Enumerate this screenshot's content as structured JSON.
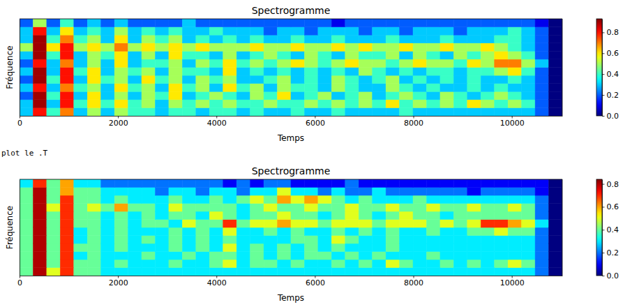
{
  "chart_data": [
    {
      "type": "heatmap",
      "title": "Spectrogramme",
      "x_label": "Temps",
      "y_label": "Fréquence",
      "xlim": [
        0,
        11025
      ],
      "xticks": [
        0,
        2000,
        4000,
        6000,
        8000,
        10000
      ],
      "ylim": [
        0,
        12
      ],
      "tick_labels": "x",
      "cells": [
        [
          0.3,
          0.8,
          0.4,
          0.7,
          0.3,
          0.5,
          0.3,
          0.5,
          0.4,
          0.4,
          0.3,
          0.4,
          0.4,
          0.3,
          0.4,
          0.4,
          0.3,
          0.4,
          0.3,
          0.3,
          0.4,
          0.3,
          0.3,
          0.4,
          0.3,
          0.3,
          0.3,
          0.3,
          0.4,
          0.3,
          0.3,
          0.3,
          0.3,
          0.3,
          0.3,
          0.3,
          0.3,
          0.3,
          0.2,
          0.0
        ],
        [
          0.3,
          0.9,
          0.3,
          0.8,
          0.4,
          0.6,
          0.4,
          0.6,
          0.4,
          0.5,
          0.3,
          0.5,
          0.4,
          0.5,
          0.4,
          0.5,
          0.4,
          0.4,
          0.5,
          0.4,
          0.4,
          0.5,
          0.4,
          0.5,
          0.4,
          0.5,
          0.4,
          0.6,
          0.4,
          0.5,
          0.4,
          0.5,
          0.4,
          0.6,
          0.5,
          0.4,
          0.5,
          0.4,
          0.2,
          0.0
        ],
        [
          0.2,
          0.9,
          0.4,
          0.8,
          0.3,
          0.6,
          0.3,
          0.5,
          0.3,
          0.5,
          0.4,
          0.6,
          0.3,
          0.4,
          0.5,
          0.4,
          0.3,
          0.5,
          0.4,
          0.6,
          0.3,
          0.4,
          0.5,
          0.3,
          0.4,
          0.5,
          0.3,
          0.4,
          0.5,
          0.4,
          0.3,
          0.5,
          0.4,
          0.3,
          0.4,
          0.5,
          0.4,
          0.3,
          0.2,
          0.0
        ],
        [
          0.3,
          0.8,
          0.3,
          0.7,
          0.4,
          0.5,
          0.3,
          0.6,
          0.4,
          0.5,
          0.3,
          0.6,
          0.4,
          0.5,
          0.3,
          0.6,
          0.4,
          0.5,
          0.3,
          0.5,
          0.4,
          0.4,
          0.3,
          0.5,
          0.4,
          0.3,
          0.3,
          0.5,
          0.4,
          0.3,
          0.4,
          0.3,
          0.3,
          0.4,
          0.3,
          0.4,
          0.3,
          0.3,
          0.2,
          0.0
        ],
        [
          0.2,
          0.9,
          0.4,
          0.8,
          0.3,
          0.6,
          0.4,
          0.5,
          0.3,
          0.6,
          0.4,
          0.5,
          0.3,
          0.5,
          0.4,
          0.5,
          0.3,
          0.3,
          0.4,
          0.5,
          0.3,
          0.4,
          0.3,
          0.5,
          0.4,
          0.3,
          0.4,
          0.5,
          0.3,
          0.4,
          0.3,
          0.4,
          0.3,
          0.4,
          0.3,
          0.3,
          0.4,
          0.3,
          0.2,
          0.0
        ],
        [
          0.3,
          0.9,
          0.3,
          0.8,
          0.4,
          0.6,
          0.3,
          0.5,
          0.4,
          0.5,
          0.3,
          0.5,
          0.4,
          0.4,
          0.3,
          0.6,
          0.3,
          0.4,
          0.3,
          0.4,
          0.3,
          0.4,
          0.3,
          0.4,
          0.3,
          0.5,
          0.4,
          0.3,
          0.4,
          0.3,
          0.4,
          0.4,
          0.3,
          0.4,
          0.4,
          0.5,
          0.6,
          0.4,
          0.2,
          0.0
        ],
        [
          0.2,
          0.8,
          0.3,
          0.7,
          0.3,
          0.5,
          0.3,
          0.6,
          0.3,
          0.4,
          0.4,
          0.5,
          0.3,
          0.5,
          0.4,
          0.6,
          0.4,
          0.5,
          0.4,
          0.5,
          0.6,
          0.5,
          0.4,
          0.5,
          0.6,
          0.5,
          0.5,
          0.4,
          0.5,
          0.6,
          0.5,
          0.5,
          0.4,
          0.6,
          0.5,
          0.7,
          0.7,
          0.5,
          0.3,
          0.0
        ],
        [
          0.3,
          0.9,
          0.4,
          0.8,
          0.3,
          0.5,
          0.4,
          0.6,
          0.3,
          0.5,
          0.3,
          0.6,
          0.4,
          0.4,
          0.3,
          0.5,
          0.3,
          0.4,
          0.5,
          0.4,
          0.3,
          0.5,
          0.4,
          0.3,
          0.5,
          0.4,
          0.4,
          0.5,
          0.3,
          0.5,
          0.4,
          0.3,
          0.5,
          0.4,
          0.5,
          0.6,
          0.5,
          0.4,
          0.2,
          0.0
        ],
        [
          0.5,
          0.9,
          0.6,
          0.8,
          0.5,
          0.6,
          0.5,
          0.7,
          0.5,
          0.6,
          0.5,
          0.6,
          0.5,
          0.6,
          0.5,
          0.5,
          0.5,
          0.6,
          0.5,
          0.5,
          0.6,
          0.5,
          0.5,
          0.6,
          0.5,
          0.6,
          0.5,
          0.5,
          0.6,
          0.5,
          0.5,
          0.6,
          0.5,
          0.5,
          0.6,
          0.5,
          0.4,
          0.3,
          0.2,
          0.0
        ],
        [
          0.3,
          0.9,
          0.4,
          0.7,
          0.4,
          0.5,
          0.3,
          0.6,
          0.3,
          0.5,
          0.4,
          0.5,
          0.3,
          0.4,
          0.3,
          0.4,
          0.3,
          0.4,
          0.3,
          0.3,
          0.4,
          0.3,
          0.3,
          0.4,
          0.3,
          0.3,
          0.3,
          0.4,
          0.3,
          0.3,
          0.3,
          0.4,
          0.3,
          0.3,
          0.3,
          0.4,
          0.4,
          0.3,
          0.2,
          0.0
        ],
        [
          0.3,
          0.8,
          0.3,
          0.6,
          0.3,
          0.4,
          0.3,
          0.5,
          0.3,
          0.4,
          0.3,
          0.4,
          0.3,
          0.3,
          0.4,
          0.3,
          0.3,
          0.3,
          0.2,
          0.3,
          0.3,
          0.2,
          0.3,
          0.3,
          0.3,
          0.2,
          0.3,
          0.3,
          0.2,
          0.3,
          0.3,
          0.3,
          0.2,
          0.3,
          0.3,
          0.3,
          0.4,
          0.3,
          0.2,
          0.0
        ],
        [
          0.2,
          0.5,
          0.2,
          0.4,
          0.2,
          0.3,
          0.2,
          0.3,
          0.2,
          0.2,
          0.2,
          0.2,
          0.3,
          0.2,
          0.2,
          0.2,
          0.2,
          0.2,
          0.2,
          0.2,
          0.2,
          0.2,
          0.2,
          0.1,
          0.2,
          0.2,
          0.2,
          0.2,
          0.2,
          0.2,
          0.2,
          0.2,
          0.2,
          0.2,
          0.2,
          0.2,
          0.2,
          0.2,
          0.1,
          0.0
        ]
      ],
      "colorbar": {
        "range": [
          0,
          0.93
        ],
        "ticks": [
          {
            "value": 0,
            "label": "0.0"
          },
          {
            "value": 0.2,
            "label": "0.2"
          },
          {
            "value": 0.4,
            "label": "0.4"
          },
          {
            "value": 0.6,
            "label": "0.6"
          },
          {
            "value": 0.8,
            "label": "0.8"
          }
        ]
      }
    },
    {
      "type": "heatmap",
      "title": "Spectrogramme",
      "x_label": "Temps",
      "y_label": "Fréquence",
      "xlim": [
        0,
        11025
      ],
      "xticks": [
        0,
        2000,
        4000,
        6000,
        8000,
        10000
      ],
      "ylim": [
        0,
        12
      ],
      "tick_labels": "x",
      "cells": [
        [
          0.4,
          0.8,
          0.5,
          0.7,
          0.4,
          0.4,
          0.3,
          0.3,
          0.3,
          0.3,
          0.3,
          0.3,
          0.3,
          0.3,
          0.3,
          0.3,
          0.3,
          0.3,
          0.3,
          0.3,
          0.3,
          0.3,
          0.3,
          0.3,
          0.3,
          0.3,
          0.3,
          0.3,
          0.3,
          0.3,
          0.3,
          0.3,
          0.3,
          0.3,
          0.3,
          0.3,
          0.3,
          0.3,
          0.2,
          0.0
        ],
        [
          0.4,
          0.8,
          0.4,
          0.7,
          0.4,
          0.4,
          0.3,
          0.4,
          0.3,
          0.3,
          0.3,
          0.4,
          0.3,
          0.3,
          0.4,
          0.5,
          0.3,
          0.4,
          0.4,
          0.3,
          0.4,
          0.3,
          0.3,
          0.4,
          0.3,
          0.4,
          0.3,
          0.5,
          0.4,
          0.3,
          0.3,
          0.4,
          0.3,
          0.4,
          0.3,
          0.4,
          0.5,
          0.4,
          0.2,
          0.0
        ],
        [
          0.4,
          0.8,
          0.4,
          0.7,
          0.3,
          0.4,
          0.3,
          0.3,
          0.3,
          0.4,
          0.3,
          0.3,
          0.4,
          0.3,
          0.4,
          0.4,
          0.3,
          0.4,
          0.3,
          0.4,
          0.3,
          0.4,
          0.4,
          0.3,
          0.4,
          0.3,
          0.4,
          0.3,
          0.3,
          0.3,
          0.4,
          0.3,
          0.3,
          0.3,
          0.3,
          0.3,
          0.3,
          0.3,
          0.2,
          0.0
        ],
        [
          0.4,
          0.8,
          0.4,
          0.7,
          0.4,
          0.4,
          0.3,
          0.4,
          0.3,
          0.3,
          0.3,
          0.4,
          0.3,
          0.4,
          0.3,
          0.5,
          0.3,
          0.4,
          0.3,
          0.4,
          0.3,
          0.4,
          0.3,
          0.4,
          0.3,
          0.3,
          0.3,
          0.4,
          0.3,
          0.3,
          0.3,
          0.3,
          0.3,
          0.3,
          0.3,
          0.3,
          0.3,
          0.3,
          0.2,
          0.0
        ],
        [
          0.4,
          0.8,
          0.4,
          0.7,
          0.3,
          0.4,
          0.3,
          0.4,
          0.3,
          0.4,
          0.3,
          0.4,
          0.3,
          0.4,
          0.3,
          0.4,
          0.3,
          0.3,
          0.3,
          0.3,
          0.4,
          0.4,
          0.3,
          0.5,
          0.4,
          0.3,
          0.3,
          0.4,
          0.3,
          0.3,
          0.3,
          0.3,
          0.3,
          0.3,
          0.3,
          0.3,
          0.3,
          0.3,
          0.2,
          0.0
        ],
        [
          0.4,
          0.8,
          0.4,
          0.7,
          0.3,
          0.4,
          0.3,
          0.4,
          0.3,
          0.3,
          0.3,
          0.4,
          0.3,
          0.4,
          0.3,
          0.5,
          0.3,
          0.3,
          0.4,
          0.3,
          0.4,
          0.3,
          0.3,
          0.4,
          0.3,
          0.4,
          0.3,
          0.4,
          0.3,
          0.3,
          0.4,
          0.3,
          0.3,
          0.4,
          0.4,
          0.5,
          0.4,
          0.4,
          0.2,
          0.0
        ],
        [
          0.4,
          0.8,
          0.4,
          0.7,
          0.4,
          0.4,
          0.3,
          0.4,
          0.3,
          0.4,
          0.4,
          0.3,
          0.5,
          0.4,
          0.4,
          0.7,
          0.4,
          0.5,
          0.5,
          0.6,
          0.5,
          0.5,
          0.4,
          0.5,
          0.5,
          0.5,
          0.4,
          0.5,
          0.5,
          0.5,
          0.4,
          0.5,
          0.4,
          0.5,
          0.7,
          0.7,
          0.6,
          0.5,
          0.3,
          0.0
        ],
        [
          0.4,
          0.8,
          0.4,
          0.7,
          0.4,
          0.4,
          0.3,
          0.4,
          0.3,
          0.4,
          0.3,
          0.4,
          0.4,
          0.3,
          0.5,
          0.4,
          0.3,
          0.4,
          0.4,
          0.5,
          0.4,
          0.4,
          0.3,
          0.4,
          0.5,
          0.4,
          0.3,
          0.4,
          0.5,
          0.4,
          0.4,
          0.3,
          0.4,
          0.4,
          0.4,
          0.4,
          0.4,
          0.4,
          0.2,
          0.0
        ],
        [
          0.4,
          0.8,
          0.5,
          0.7,
          0.4,
          0.5,
          0.4,
          0.6,
          0.4,
          0.4,
          0.3,
          0.5,
          0.4,
          0.4,
          0.4,
          0.4,
          0.3,
          0.4,
          0.5,
          0.4,
          0.4,
          0.5,
          0.4,
          0.4,
          0.5,
          0.4,
          0.4,
          0.5,
          0.4,
          0.4,
          0.5,
          0.4,
          0.4,
          0.5,
          0.4,
          0.4,
          0.5,
          0.4,
          0.2,
          0.0
        ],
        [
          0.4,
          0.8,
          0.4,
          0.7,
          0.4,
          0.4,
          0.3,
          0.4,
          0.3,
          0.3,
          0.3,
          0.4,
          0.3,
          0.3,
          0.4,
          0.3,
          0.4,
          0.5,
          0.4,
          0.6,
          0.5,
          0.6,
          0.5,
          0.4,
          0.3,
          0.4,
          0.3,
          0.3,
          0.3,
          0.4,
          0.3,
          0.3,
          0.3,
          0.3,
          0.3,
          0.3,
          0.3,
          0.3,
          0.2,
          0.0
        ],
        [
          0.4,
          0.8,
          0.4,
          0.6,
          0.4,
          0.4,
          0.3,
          0.3,
          0.3,
          0.3,
          0.2,
          0.3,
          0.3,
          0.2,
          0.3,
          0.3,
          0.2,
          0.3,
          0.3,
          0.5,
          0.3,
          0.3,
          0.2,
          0.3,
          0.2,
          0.2,
          0.3,
          0.2,
          0.2,
          0.2,
          0.2,
          0.2,
          0.2,
          0.1,
          0.2,
          0.2,
          0.2,
          0.2,
          0.1,
          0.0
        ],
        [
          0.3,
          0.7,
          0.4,
          0.6,
          0.3,
          0.3,
          0.2,
          0.2,
          0.2,
          0.2,
          0.2,
          0.2,
          0.2,
          0.2,
          0.2,
          0.1,
          0.2,
          0.1,
          0.2,
          0.2,
          0.1,
          0.1,
          0.1,
          0.1,
          0.2,
          0.1,
          0.1,
          0.1,
          0.1,
          0.1,
          0.1,
          0.1,
          0.1,
          0.1,
          0.1,
          0.1,
          0.1,
          0.1,
          0.1,
          0.0
        ]
      ],
      "colorbar": {
        "range": [
          0,
          0.84
        ],
        "ticks": [
          {
            "value": 0,
            "label": "0.0"
          },
          {
            "value": 0.2,
            "label": "0.2"
          },
          {
            "value": 0.4,
            "label": "0.4"
          },
          {
            "value": 0.6,
            "label": "0.6"
          },
          {
            "value": 0.8,
            "label": "0.8"
          }
        ]
      }
    }
  ],
  "text": "plot le .T"
}
